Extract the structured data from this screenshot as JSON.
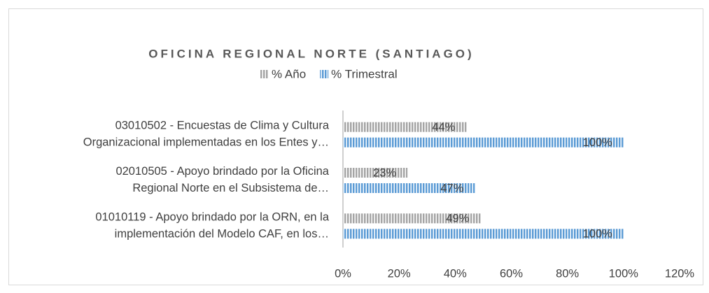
{
  "chart_data": {
    "type": "bar",
    "orientation": "horizontal",
    "title": "OFICINA REGIONAL NORTE (SANTIAGO)",
    "categories": [
      "03010502 - Encuestas de Clima y Cultura\nOrganizacional implementadas en los Entes y…",
      "02010505 - Apoyo brindado por la Oficina\nRegional Norte en el Subsistema de…",
      "01010119 - Apoyo brindado por la ORN, en la\nimplementación del Modelo CAF, en los…"
    ],
    "series": [
      {
        "name": "% Año",
        "color": "#a5a5a5",
        "values": [
          44,
          23,
          49
        ],
        "value_labels": [
          "44%",
          "23%",
          "49%"
        ]
      },
      {
        "name": "% Trimestral",
        "color": "#5b9bd5",
        "values": [
          100,
          47,
          100
        ],
        "value_labels": [
          "100%",
          "47%",
          "100%"
        ]
      }
    ],
    "xlim": [
      0,
      120
    ],
    "xticks": [
      {
        "value": 0,
        "label": "0%"
      },
      {
        "value": 20,
        "label": "20%"
      },
      {
        "value": 40,
        "label": "40%"
      },
      {
        "value": 60,
        "label": "60%"
      },
      {
        "value": 80,
        "label": "80%"
      },
      {
        "value": 100,
        "label": "100%"
      },
      {
        "value": 120,
        "label": "120%"
      }
    ],
    "legend": "top"
  }
}
